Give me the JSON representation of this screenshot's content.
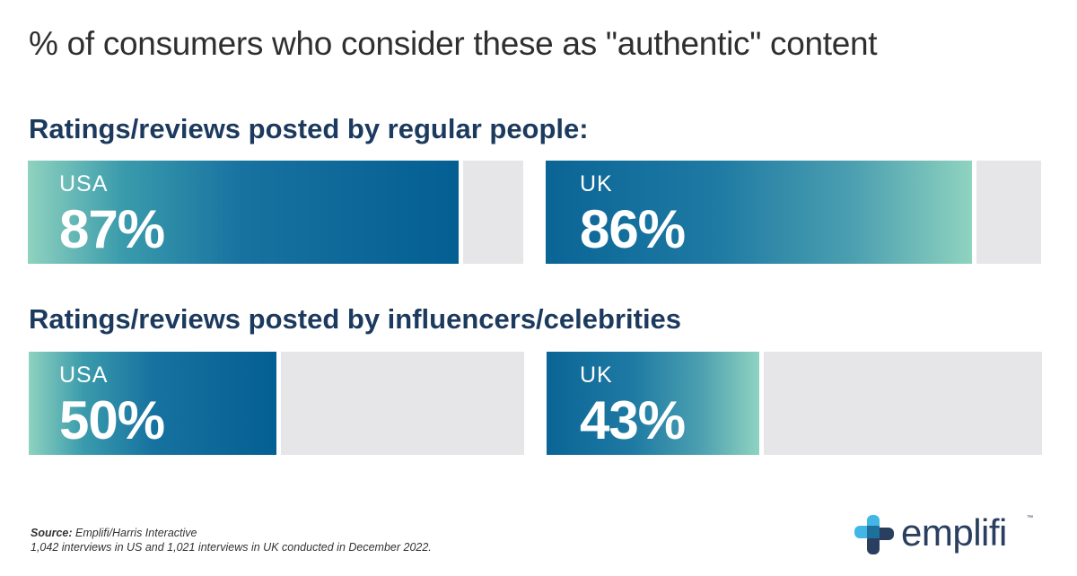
{
  "chart_data": {
    "type": "bar",
    "title": "% of consumers who consider these as \"authentic\" content",
    "groups": [
      {
        "title": "Ratings/reviews posted by regular people:",
        "bars": [
          {
            "country": "USA",
            "value": 87,
            "label": "87%"
          },
          {
            "country": "UK",
            "value": 86,
            "label": "86%"
          }
        ]
      },
      {
        "title": "Ratings/reviews posted by influencers/celebrities",
        "bars": [
          {
            "country": "USA",
            "value": 50,
            "label": "50%"
          },
          {
            "country": "UK",
            "value": 43,
            "label": "43%"
          }
        ]
      }
    ],
    "ylim": [
      0,
      100
    ]
  },
  "footer": {
    "source_label": "Source:",
    "source_text": " Emplifi/Harris Interactive",
    "note": "1,042 interviews in US and 1,021 interviews in UK conducted in December 2022."
  },
  "brand": {
    "name": "emplifi",
    "trademark": "™",
    "icon": "emplifi-logo-icon"
  }
}
